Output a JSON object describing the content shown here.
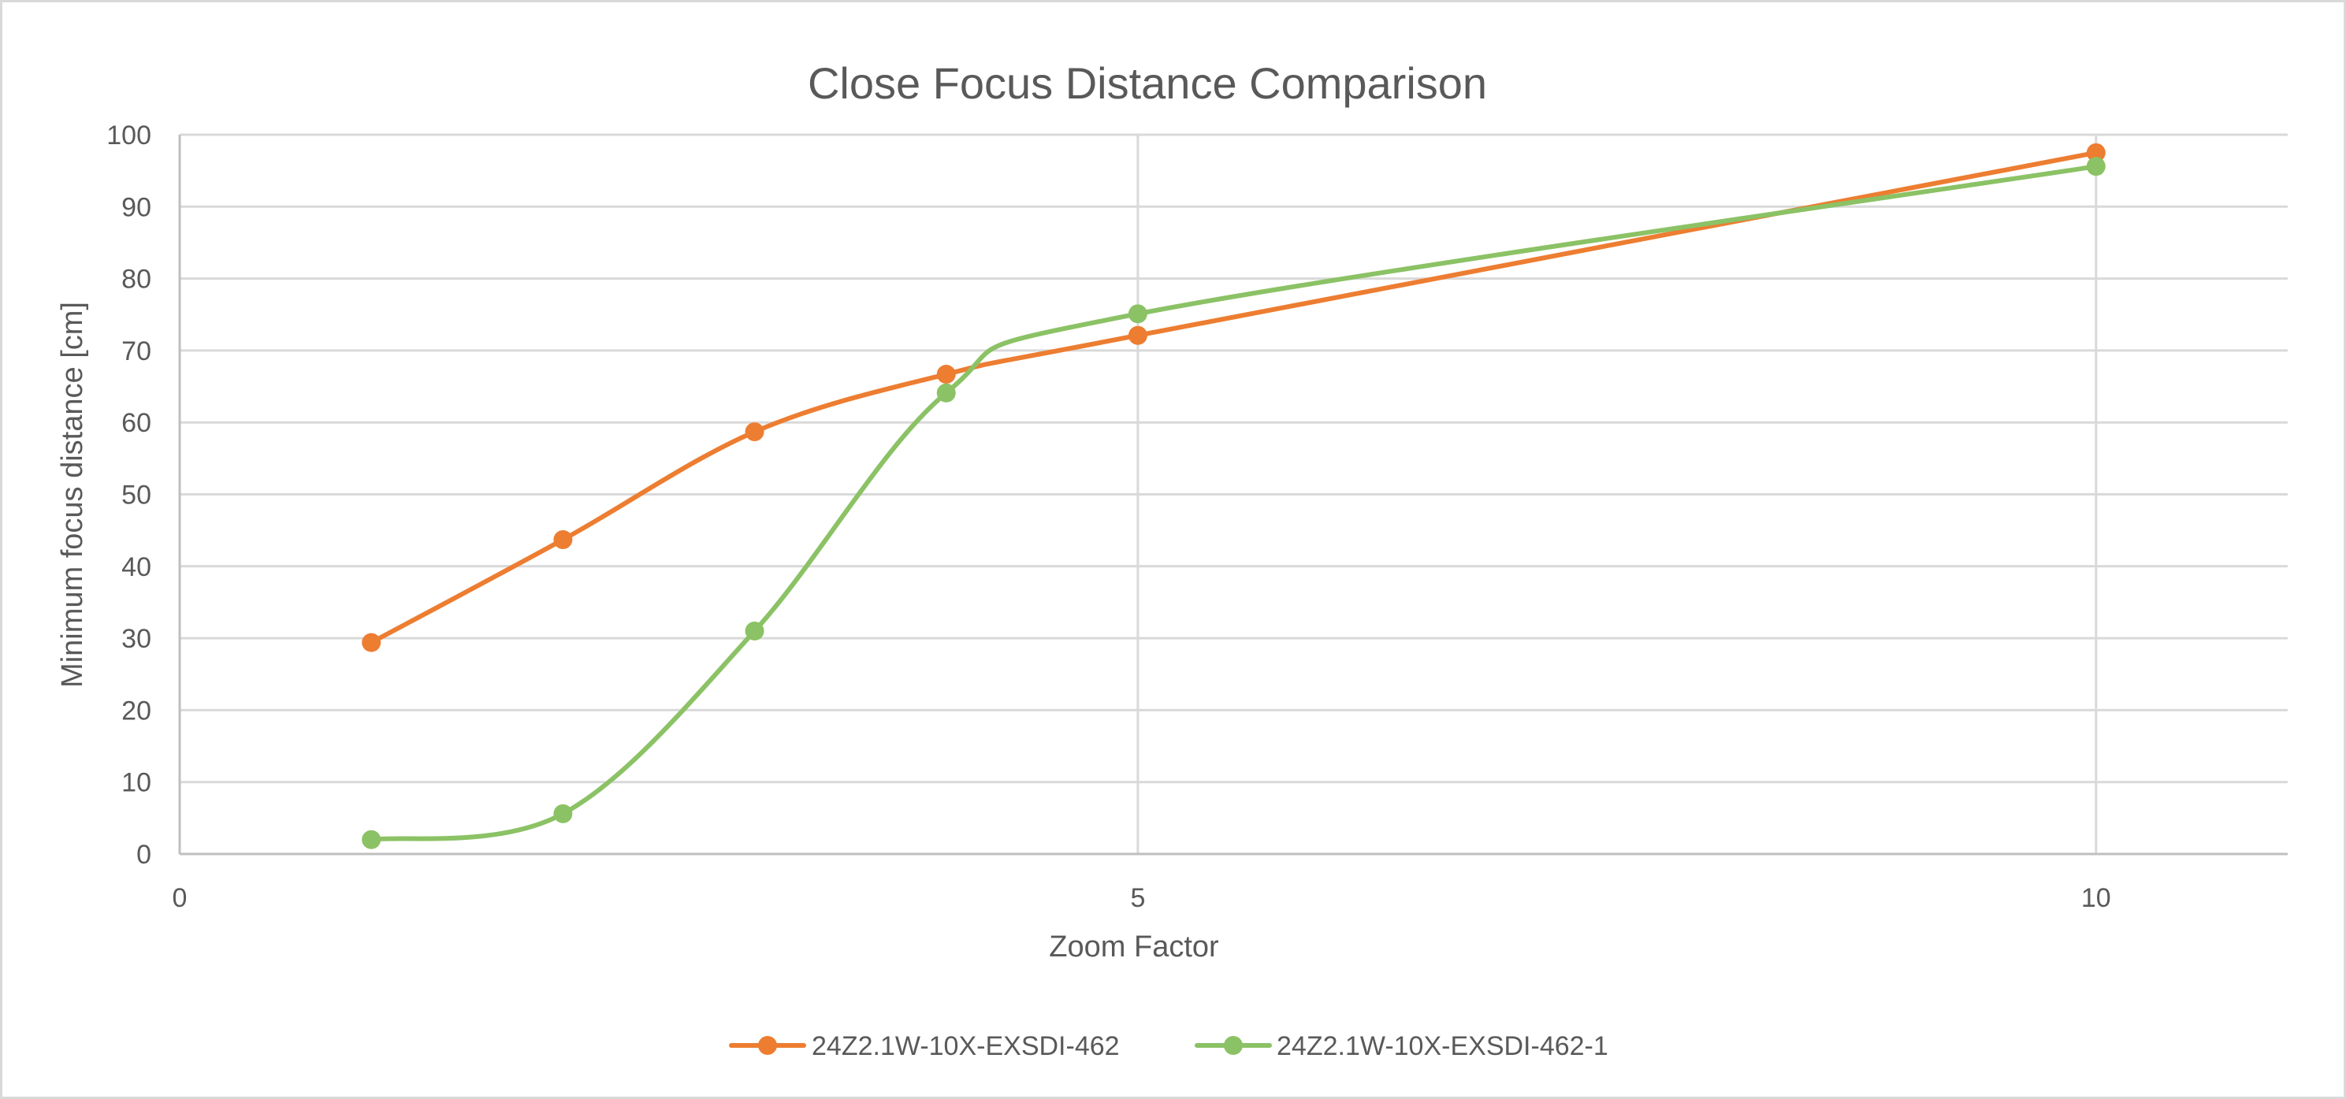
{
  "chart_data": {
    "type": "line",
    "title": "Close Focus Distance Comparison",
    "xlabel": "Zoom Factor",
    "ylabel": "Minimum focus distance [cm]",
    "xlim": [
      0,
      11
    ],
    "ylim": [
      0,
      100
    ],
    "x_ticks": [
      0,
      5,
      10
    ],
    "y_ticks": [
      0,
      10,
      20,
      30,
      40,
      50,
      60,
      70,
      80,
      90,
      100
    ],
    "grid": {
      "horizontal": true,
      "vertical": true
    },
    "smoothed": true,
    "markers": "circle",
    "legend_position": "bottom",
    "series": [
      {
        "name": "24Z2.1W-10X-EXSDI-462",
        "color": "#ed7d31",
        "x": [
          1,
          2,
          3,
          4,
          5,
          10
        ],
        "values": [
          29.4,
          43.7,
          58.7,
          66.7,
          72.1,
          97.5
        ]
      },
      {
        "name": "24Z2.1W-10X-EXSDI-462-1",
        "color": "#8bc265",
        "x": [
          1,
          2,
          3,
          4,
          5,
          10
        ],
        "values": [
          2.0,
          5.6,
          31.0,
          64.1,
          75.1,
          95.6
        ]
      }
    ]
  },
  "colors": {
    "text": "#595959",
    "grid": "#d9d9d9",
    "axis": "#bfbfbf",
    "border": "#d9d9d9"
  }
}
